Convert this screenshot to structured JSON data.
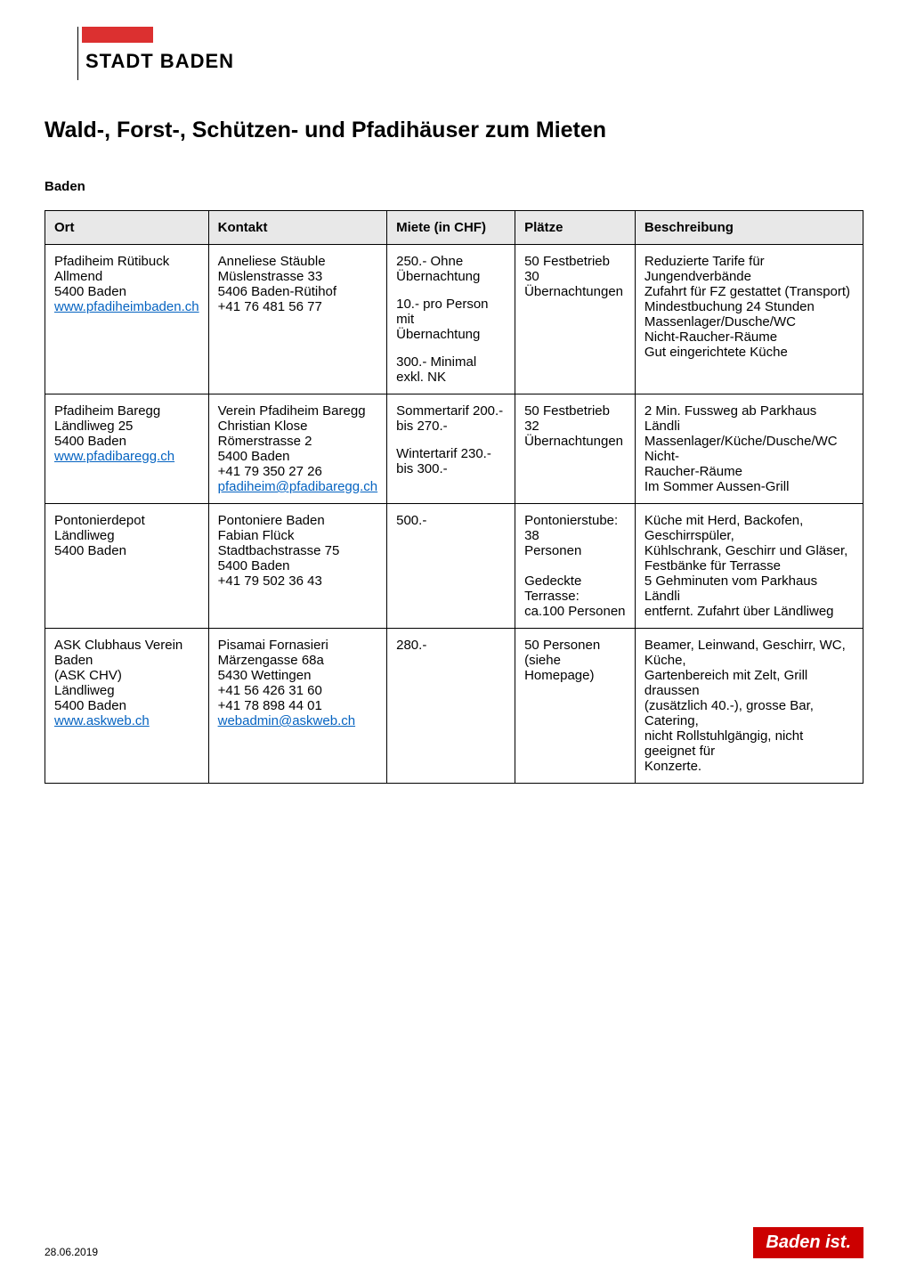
{
  "logo": {
    "text": "STADT BADEN"
  },
  "title": "Wald-, Forst-, Schützen-  und Pfadihäuser zum Mieten",
  "section": "Baden",
  "table": {
    "headers": {
      "ort": "Ort",
      "kontakt": "Kontakt",
      "miete": "Miete (in CHF)",
      "plaetze": "Plätze",
      "beschreibung": "Beschreibung"
    },
    "rows": [
      {
        "ort": {
          "l1": "Pfadiheim Rütibuck",
          "l2": "Allmend",
          "l3": "5400 Baden",
          "link": "www.pfadiheimbaden.ch"
        },
        "kontakt": {
          "l1": "Anneliese Stäuble",
          "l2": "Müslenstrasse 33",
          "l3": "5406 Baden-Rütihof",
          "l4": "+41 76 481 56 77"
        },
        "miete": {
          "b1": "250.- Ohne Übernachtung",
          "b2a": "10.- pro Person mit",
          "b2b": "Übernachtung",
          "b3": "300.- Minimal exkl. NK"
        },
        "plaetze": {
          "l1": "50 Festbetrieb",
          "l2": "30 Übernachtungen"
        },
        "beschreibung": {
          "l1": "Reduzierte Tarife für Jungendverbände",
          "l2": "Zufahrt für FZ gestattet (Transport)",
          "l3": "Mindestbuchung 24 Stunden",
          "l4": "Massenlager/Dusche/WC",
          "l5": "Nicht-Raucher-Räume",
          "l6": "Gut eingerichtete Küche"
        }
      },
      {
        "ort": {
          "l1": "Pfadiheim Baregg",
          "l2": "Ländliweg 25",
          "l3": "5400 Baden",
          "link": "www.pfadibaregg.ch"
        },
        "kontakt": {
          "l1": "Verein Pfadiheim Baregg",
          "l2": "Christian Klose",
          "l3": "Römerstrasse 2",
          "l4": "5400 Baden",
          "l5": "+41 79 350 27 26",
          "link": "pfadiheim@pfadibaregg.ch"
        },
        "miete": {
          "b1": "Sommertarif 200.- bis 270.-",
          "b2": "Wintertarif 230.- bis 300.-"
        },
        "plaetze": {
          "l1": "50 Festbetrieb",
          "l2": "32 Übernachtungen"
        },
        "beschreibung": {
          "l1": "2 Min. Fussweg ab Parkhaus Ländli",
          "l2": "Massenlager/Küche/Dusche/WC Nicht-",
          "l3": "Raucher-Räume",
          "l4": "Im Sommer Aussen-Grill"
        }
      },
      {
        "ort": {
          "l1": "Pontonierdepot",
          "l2": "Ländliweg",
          "l3": "5400 Baden"
        },
        "kontakt": {
          "l1": "Pontoniere Baden",
          "l2": "Fabian Flück",
          "l3": "Stadtbachstrasse 75",
          "l4": "5400 Baden",
          "l5": "+41 79 502 36 43"
        },
        "miete": {
          "b1": "500.-"
        },
        "plaetze": {
          "l1": "Pontonierstube: 38",
          "l2": "Personen",
          "l3": "Gedeckte Terrasse:",
          "l4": "ca.100 Personen"
        },
        "beschreibung": {
          "l1": "Küche mit Herd, Backofen, Geschirrspüler,",
          "l2": "Kühlschrank, Geschirr und Gläser,",
          "l3": "Festbänke für Terrasse",
          "l4": "5 Gehminuten vom Parkhaus Ländli",
          "l5": "entfernt. Zufahrt über Ländliweg"
        }
      },
      {
        "ort": {
          "l1": "ASK Clubhaus Verein Baden",
          "l2": "(ASK CHV)",
          "l3": "Ländliweg",
          "l4": "5400 Baden",
          "link": "www.askweb.ch"
        },
        "kontakt": {
          "l1": "Pisamai Fornasieri",
          "l2": "Märzengasse 68a",
          "l3": "5430 Wettingen",
          "l4": "+41 56 426 31 60",
          "l5": "+41 78 898 44 01",
          "link": "webadmin@askweb.ch"
        },
        "miete": {
          "b1": "280.-"
        },
        "plaetze": {
          "l1": "50 Personen (siehe",
          "l2": "Homepage)"
        },
        "beschreibung": {
          "l1": "Beamer, Leinwand, Geschirr, WC, Küche,",
          "l2": "Gartenbereich mit Zelt, Grill draussen",
          "l3": "(zusätzlich 40.-), grosse Bar, Catering,",
          "l4": "nicht Rollstuhlgängig, nicht geeignet für",
          "l5": "Konzerte."
        }
      }
    ]
  },
  "footer": {
    "date": "28.06.2019",
    "logo": "Baden ist."
  }
}
